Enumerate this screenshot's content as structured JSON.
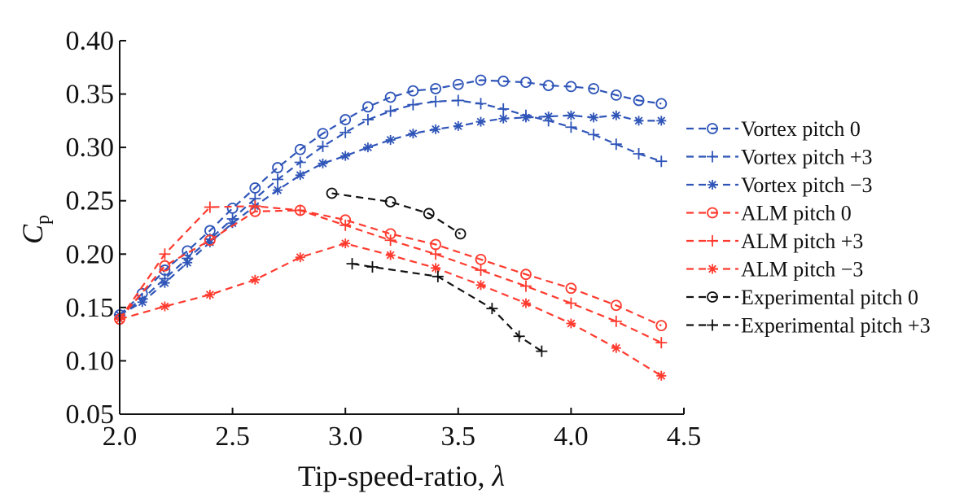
{
  "chart_data": {
    "type": "line",
    "title": "",
    "xlabel": "Tip-speed-ratio, ",
    "xlabel_symbol": "λ",
    "ylabel": "C",
    "ylabel_sub": "p",
    "xlim": [
      2.0,
      4.5
    ],
    "ylim": [
      0.05,
      0.4
    ],
    "x_ticks": [
      "2.0",
      "2.5",
      "3.0",
      "3.5",
      "4.0",
      "4.5"
    ],
    "y_ticks": [
      "0.05",
      "0.10",
      "0.15",
      "0.20",
      "0.25",
      "0.30",
      "0.35",
      "0.40"
    ],
    "x_tick_values": [
      2.0,
      2.5,
      3.0,
      3.5,
      4.0,
      4.5
    ],
    "y_tick_values": [
      0.05,
      0.1,
      0.15,
      0.2,
      0.25,
      0.3,
      0.35,
      0.4
    ],
    "grid": false,
    "legend_position": "right",
    "series": [
      {
        "name": "Vortex pitch 0",
        "color": "#2f55b8",
        "marker": "circle",
        "x": [
          2.0,
          2.1,
          2.2,
          2.3,
          2.4,
          2.5,
          2.6,
          2.7,
          2.8,
          2.9,
          3.0,
          3.1,
          3.2,
          3.3,
          3.4,
          3.5,
          3.6,
          3.7,
          3.8,
          3.9,
          4.0,
          4.1,
          4.2,
          4.3,
          4.4
        ],
        "y": [
          0.143,
          0.163,
          0.185,
          0.203,
          0.222,
          0.243,
          0.262,
          0.281,
          0.298,
          0.313,
          0.326,
          0.338,
          0.347,
          0.353,
          0.355,
          0.359,
          0.363,
          0.362,
          0.361,
          0.358,
          0.357,
          0.355,
          0.349,
          0.344,
          0.341
        ]
      },
      {
        "name": "Vortex pitch +3",
        "color": "#2f55b8",
        "marker": "plus",
        "x": [
          2.0,
          2.1,
          2.2,
          2.3,
          2.4,
          2.5,
          2.6,
          2.7,
          2.8,
          2.9,
          3.0,
          3.1,
          3.2,
          3.3,
          3.4,
          3.5,
          3.6,
          3.7,
          3.8,
          3.9,
          4.0,
          4.1,
          4.2,
          4.3,
          4.4
        ],
        "y": [
          0.143,
          0.158,
          0.177,
          0.196,
          0.214,
          0.233,
          0.252,
          0.27,
          0.286,
          0.301,
          0.314,
          0.326,
          0.334,
          0.34,
          0.343,
          0.344,
          0.341,
          0.336,
          0.33,
          0.325,
          0.319,
          0.312,
          0.303,
          0.294,
          0.287
        ]
      },
      {
        "name": "Vortex pitch −3",
        "color": "#2f55b8",
        "marker": "asterisk",
        "x": [
          2.0,
          2.1,
          2.2,
          2.3,
          2.4,
          2.5,
          2.6,
          2.7,
          2.8,
          2.9,
          3.0,
          3.1,
          3.2,
          3.3,
          3.4,
          3.5,
          3.6,
          3.7,
          3.8,
          3.9,
          4.0,
          4.1,
          4.2,
          4.3,
          4.4
        ],
        "y": [
          0.143,
          0.155,
          0.173,
          0.192,
          0.211,
          0.229,
          0.245,
          0.26,
          0.274,
          0.285,
          0.292,
          0.3,
          0.307,
          0.313,
          0.317,
          0.32,
          0.324,
          0.327,
          0.328,
          0.329,
          0.33,
          0.328,
          0.33,
          0.325,
          0.325
        ]
      },
      {
        "name": "ALM pitch 0",
        "color": "#ff3b2f",
        "marker": "circle",
        "x": [
          2.0,
          2.2,
          2.4,
          2.6,
          2.8,
          3.0,
          3.2,
          3.4,
          3.6,
          3.8,
          4.0,
          4.2,
          4.4
        ],
        "y": [
          0.139,
          0.189,
          0.213,
          0.24,
          0.241,
          0.232,
          0.219,
          0.209,
          0.195,
          0.181,
          0.168,
          0.152,
          0.133
        ]
      },
      {
        "name": "ALM pitch +3",
        "color": "#ff3b2f",
        "marker": "plus",
        "x": [
          2.0,
          2.2,
          2.4,
          2.6,
          2.8,
          3.0,
          3.2,
          3.4,
          3.6,
          3.8,
          4.0,
          4.2,
          4.4
        ],
        "y": [
          0.139,
          0.2,
          0.244,
          0.245,
          0.241,
          0.227,
          0.213,
          0.2,
          0.185,
          0.17,
          0.154,
          0.137,
          0.117
        ]
      },
      {
        "name": "ALM pitch −3",
        "color": "#ff3b2f",
        "marker": "asterisk",
        "x": [
          2.0,
          2.2,
          2.4,
          2.6,
          2.8,
          3.0,
          3.2,
          3.4,
          3.6,
          3.8,
          4.0,
          4.2,
          4.4
        ],
        "y": [
          0.139,
          0.151,
          0.162,
          0.176,
          0.197,
          0.21,
          0.199,
          0.187,
          0.171,
          0.154,
          0.135,
          0.112,
          0.086
        ]
      },
      {
        "name": "Experimental pitch 0",
        "color": "#111111",
        "marker": "circle",
        "x": [
          2.94,
          3.2,
          3.37,
          3.51
        ],
        "y": [
          0.257,
          0.249,
          0.238,
          0.219
        ]
      },
      {
        "name": "Experimental pitch +3",
        "color": "#111111",
        "marker": "plus",
        "x": [
          3.03,
          3.12,
          3.41,
          3.65,
          3.77,
          3.87
        ],
        "y": [
          0.191,
          0.188,
          0.179,
          0.149,
          0.123,
          0.109
        ]
      }
    ]
  }
}
